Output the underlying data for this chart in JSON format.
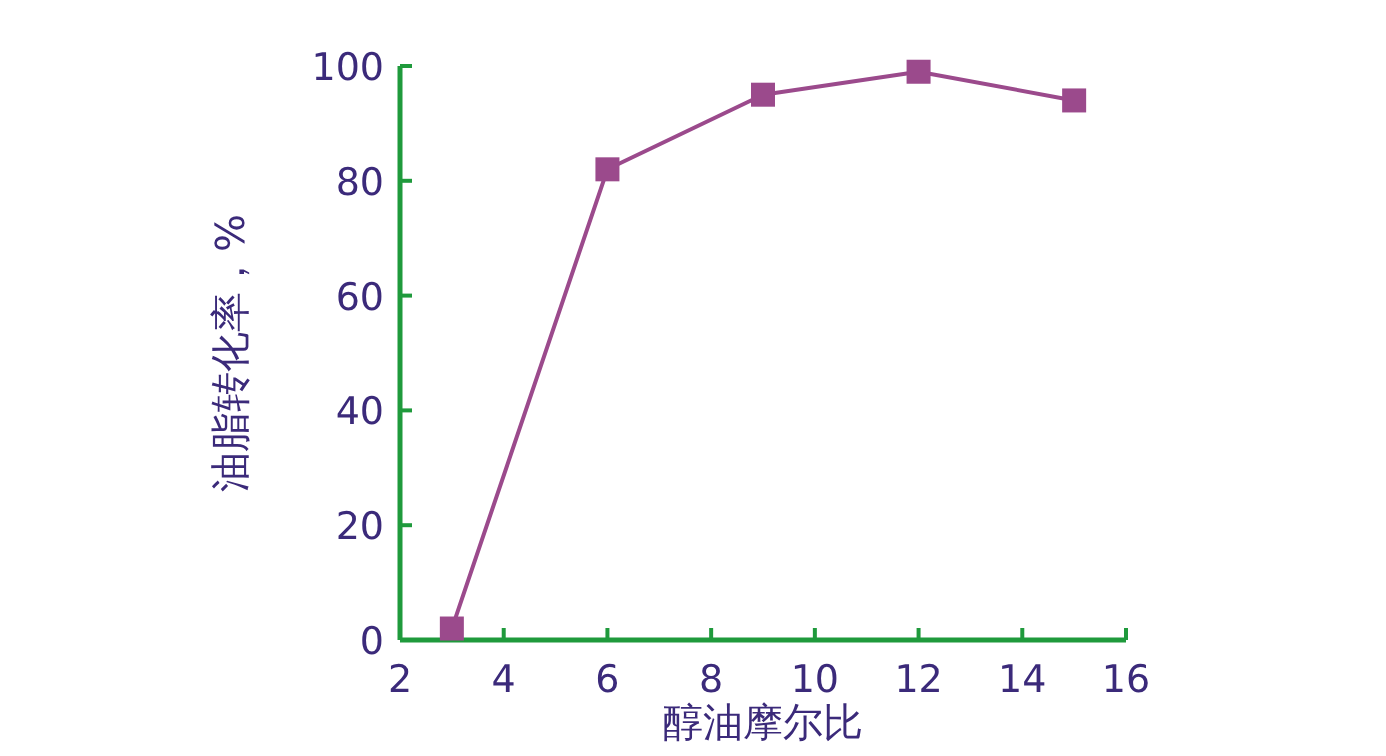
{
  "chart_data": {
    "type": "line",
    "xlabel": "醇油摩尔比",
    "ylabel": "油脂转化率，%",
    "x": [
      3,
      6,
      9,
      12,
      15
    ],
    "values": [
      2,
      82,
      95,
      99,
      94
    ],
    "color": "#9b4a8c",
    "marker": "square",
    "grid": false,
    "xlim": [
      2,
      16
    ],
    "ylim": [
      0,
      100
    ],
    "xticks": [
      2,
      4,
      6,
      8,
      10,
      12,
      14,
      16
    ],
    "yticks": [
      0,
      20,
      40,
      60,
      80,
      100
    ]
  }
}
